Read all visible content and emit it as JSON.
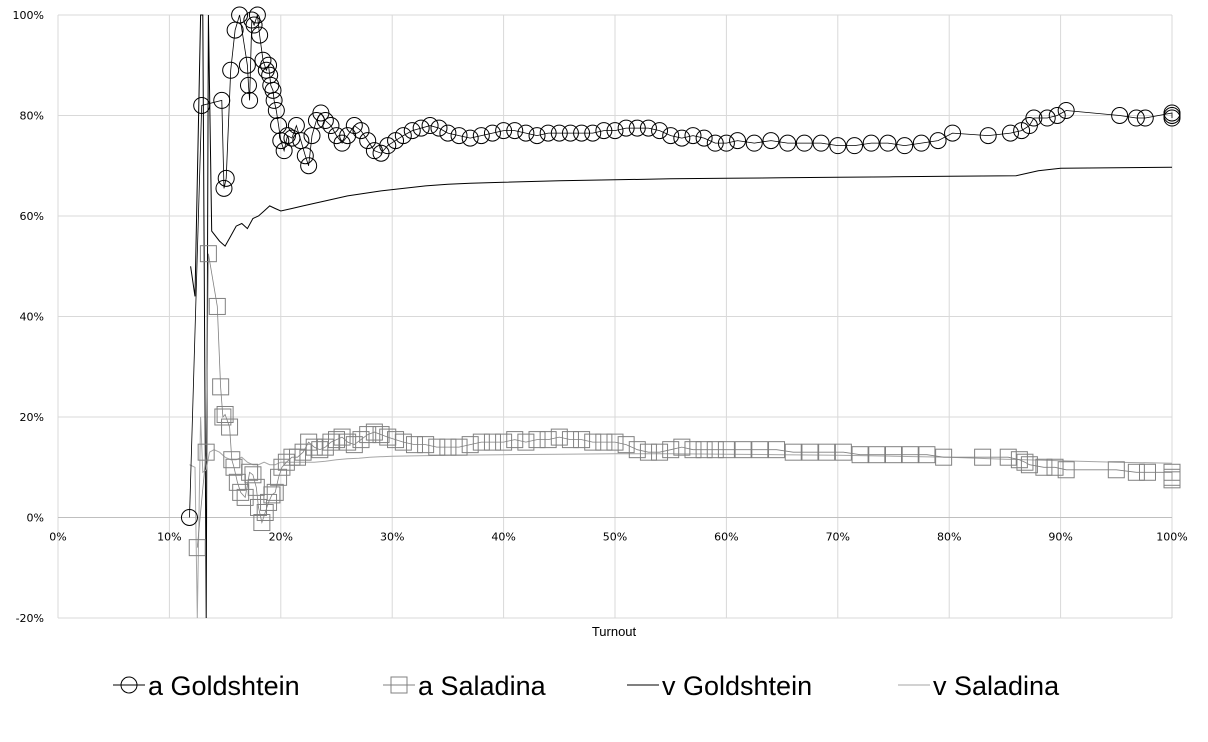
{
  "chart_data": {
    "type": "line",
    "title": "",
    "xlabel": "Turnout",
    "ylabel": "",
    "xlim": [
      0,
      100
    ],
    "ylim": [
      -20,
      100
    ],
    "x_ticks": [
      "0%",
      "10%",
      "20%",
      "30%",
      "40%",
      "50%",
      "60%",
      "70%",
      "80%",
      "90%",
      "100%"
    ],
    "y_ticks": [
      "-20%",
      "0%",
      "20%",
      "40%",
      "60%",
      "80%",
      "100%"
    ],
    "x_tick_values": [
      0,
      10,
      20,
      30,
      40,
      50,
      60,
      70,
      80,
      90,
      100
    ],
    "y_tick_values": [
      -20,
      0,
      20,
      40,
      60,
      80,
      100
    ],
    "grid": true,
    "legend_position": "bottom",
    "series": [
      {
        "name": "a Goldshtein",
        "style": "line-with-circle-markers",
        "color": "#000000",
        "x": [
          11.8,
          12.9,
          14.7,
          14.9,
          15.1,
          15.5,
          15.9,
          16.3,
          17.0,
          17.1,
          17.2,
          17.4,
          17.6,
          17.9,
          18.1,
          18.4,
          18.7,
          18.9,
          19.0,
          19.1,
          19.3,
          19.4,
          19.6,
          19.8,
          20.0,
          20.3,
          20.6,
          21.0,
          21.4,
          21.8,
          22.2,
          22.5,
          22.8,
          23.2,
          23.6,
          24.0,
          24.5,
          25.0,
          25.5,
          26.0,
          26.6,
          27.2,
          27.8,
          28.4,
          29.0,
          29.6,
          30.3,
          31.0,
          31.8,
          32.6,
          33.4,
          34.2,
          35.0,
          36.0,
          37.0,
          38.0,
          39.0,
          40.0,
          41.0,
          42.0,
          43.0,
          44.0,
          45.0,
          46.0,
          47.0,
          48.0,
          49.0,
          50.0,
          51.0,
          52.0,
          53.0,
          54.0,
          55.0,
          56.0,
          57.0,
          58.0,
          59.0,
          60.0,
          61.0,
          62.5,
          64.0,
          65.5,
          67.0,
          68.5,
          70.0,
          71.5,
          73.0,
          74.5,
          76.0,
          77.5,
          79.0,
          80.3,
          83.5,
          85.5,
          86.5,
          87.2,
          87.6,
          88.8,
          89.7,
          90.5,
          95.3,
          96.8,
          97.6,
          100.0,
          100.0,
          100.0
        ],
        "y": [
          0,
          82,
          83,
          65.5,
          67.5,
          89,
          97,
          100,
          90,
          86,
          83,
          99,
          98,
          100,
          96,
          91,
          89,
          90,
          88,
          86,
          85,
          83,
          81,
          78,
          75,
          73,
          76,
          75.5,
          78,
          75,
          72,
          70,
          76,
          79,
          80.5,
          79,
          78,
          76,
          74.5,
          76,
          78,
          77,
          75,
          73,
          72.5,
          74,
          75,
          76,
          77,
          77.5,
          78,
          77.5,
          76.5,
          76,
          75.5,
          76,
          76.5,
          77,
          77,
          76.5,
          76,
          76.5,
          76.5,
          76.5,
          76.5,
          76.5,
          77,
          77,
          77.5,
          77.5,
          77.5,
          77,
          76,
          75.5,
          76,
          75.5,
          74.5,
          74.5,
          75,
          74.5,
          75,
          74.5,
          74.5,
          74.5,
          74,
          74,
          74.5,
          74.5,
          74,
          74.5,
          75,
          76.5,
          76,
          76.5,
          77,
          78,
          79.5,
          79.5,
          80,
          81,
          80,
          79.5,
          79.5,
          80.5,
          79.5,
          80
        ]
      },
      {
        "name": "a Saladina",
        "style": "line-with-square-markers",
        "color": "#808080",
        "x": [
          12.5,
          13.3,
          13.5,
          14.3,
          14.6,
          14.8,
          15.0,
          15.4,
          15.6,
          15.8,
          16.1,
          16.4,
          16.8,
          17.2,
          17.5,
          17.8,
          18.0,
          18.3,
          18.6,
          18.9,
          19.2,
          19.5,
          19.8,
          20.1,
          20.5,
          21.0,
          21.5,
          22.0,
          22.5,
          23.0,
          23.5,
          24.0,
          24.5,
          25.0,
          25.5,
          26.0,
          26.6,
          27.2,
          27.8,
          28.4,
          29.0,
          29.6,
          30.3,
          31.0,
          32.0,
          33.0,
          34.0,
          35.0,
          36.0,
          37.0,
          38.0,
          39.0,
          40.0,
          41.0,
          42.0,
          43.0,
          44.0,
          45.0,
          46.0,
          47.0,
          48.0,
          49.0,
          50.0,
          51.0,
          52.0,
          53.0,
          54.0,
          55.0,
          56.0,
          57.0,
          58.0,
          59.0,
          60.0,
          61.5,
          63.0,
          64.5,
          66.0,
          67.5,
          69.0,
          70.5,
          72.0,
          73.5,
          75.0,
          76.5,
          78.0,
          79.5,
          83.0,
          85.3,
          86.3,
          86.8,
          87.2,
          88.5,
          89.5,
          90.5,
          95.0,
          96.8,
          97.8,
          100.0,
          100.0,
          100.0
        ],
        "y": [
          -6,
          13,
          52.5,
          42,
          26,
          20,
          20.5,
          18,
          11.5,
          10,
          7,
          5,
          4,
          9,
          8.5,
          6,
          2,
          -1,
          1,
          3,
          4.5,
          5,
          8,
          10,
          11,
          12,
          12,
          13,
          15,
          14,
          13.5,
          14,
          15,
          15.5,
          16,
          15,
          14.5,
          15.5,
          16.5,
          17,
          16.5,
          16,
          15.5,
          15,
          14.5,
          14.5,
          14,
          14,
          14,
          14.5,
          15,
          15,
          15,
          15.5,
          15,
          15.5,
          15.5,
          16,
          15.5,
          15.5,
          15,
          15,
          15,
          14.5,
          13.5,
          13,
          13,
          13.5,
          14,
          13.5,
          13.5,
          13.5,
          13.5,
          13.5,
          13.5,
          13.5,
          13,
          13,
          13,
          13,
          12.5,
          12.5,
          12.5,
          12.5,
          12.5,
          12,
          12,
          12,
          11.5,
          11,
          10.5,
          10,
          10,
          9.5,
          9.5,
          9,
          9,
          9,
          8,
          7.5
        ]
      },
      {
        "name": "v Goldshtein",
        "style": "line",
        "color": "#000000",
        "x": [
          11.9,
          12.3,
          12.8,
          13.0,
          13.3,
          13.5,
          13.8,
          14.5,
          15.0,
          15.5,
          16.0,
          16.5,
          17.0,
          17.5,
          18.0,
          18.5,
          19.0,
          19.5,
          20.0,
          21.0,
          22.0,
          23.0,
          24.0,
          25.0,
          26.0,
          27.5,
          29.0,
          31.0,
          33.0,
          35.0,
          37.0,
          40.0,
          45.0,
          50.0,
          55.0,
          60.0,
          65.0,
          70.0,
          75.0,
          80.0,
          86.0,
          87.0,
          88.0,
          90.0,
          95.0,
          100.0
        ],
        "y": [
          50,
          44,
          100,
          100,
          -20,
          100,
          57,
          55,
          54,
          56,
          58,
          58.5,
          57.5,
          59.5,
          60,
          61,
          62,
          61.5,
          61,
          61.5,
          62,
          62.5,
          63,
          63.5,
          64,
          64.5,
          65,
          65.5,
          66,
          66.3,
          66.5,
          66.7,
          67,
          67.2,
          67.4,
          67.5,
          67.6,
          67.7,
          67.8,
          67.9,
          68,
          68.5,
          69,
          69.5,
          69.6,
          69.7
        ]
      },
      {
        "name": "v Saladina",
        "style": "line",
        "color": "#a6a6a6",
        "x": [
          11.8,
          12.3,
          12.5,
          12.8,
          13.0,
          13.3,
          13.6,
          14.0,
          14.5,
          15.0,
          15.5,
          16.0,
          16.5,
          17.0,
          17.5,
          18.0,
          18.5,
          19.0,
          19.5,
          20.0,
          21.0,
          22.0,
          23.0,
          24.0,
          25.0,
          26.0,
          27.0,
          28.0,
          30.0,
          35.0,
          40.0,
          45.0,
          50.0,
          55.0,
          60.0,
          65.0,
          70.0,
          75.0,
          80.0,
          85.0,
          90.0,
          95.0,
          100.0
        ],
        "y": [
          10.5,
          10,
          -20,
          20,
          9,
          9.5,
          13,
          13.5,
          13,
          12,
          11.5,
          11.5,
          12,
          11,
          10.5,
          10.5,
          11,
          10.5,
          10.5,
          11,
          11,
          11,
          11,
          11.2,
          11.5,
          11.7,
          11.8,
          12,
          12.2,
          12.4,
          12.5,
          12.6,
          12.7,
          12.7,
          12.6,
          12.5,
          12.4,
          12.2,
          12,
          11.6,
          11.3,
          11,
          10.8
        ]
      }
    ]
  }
}
